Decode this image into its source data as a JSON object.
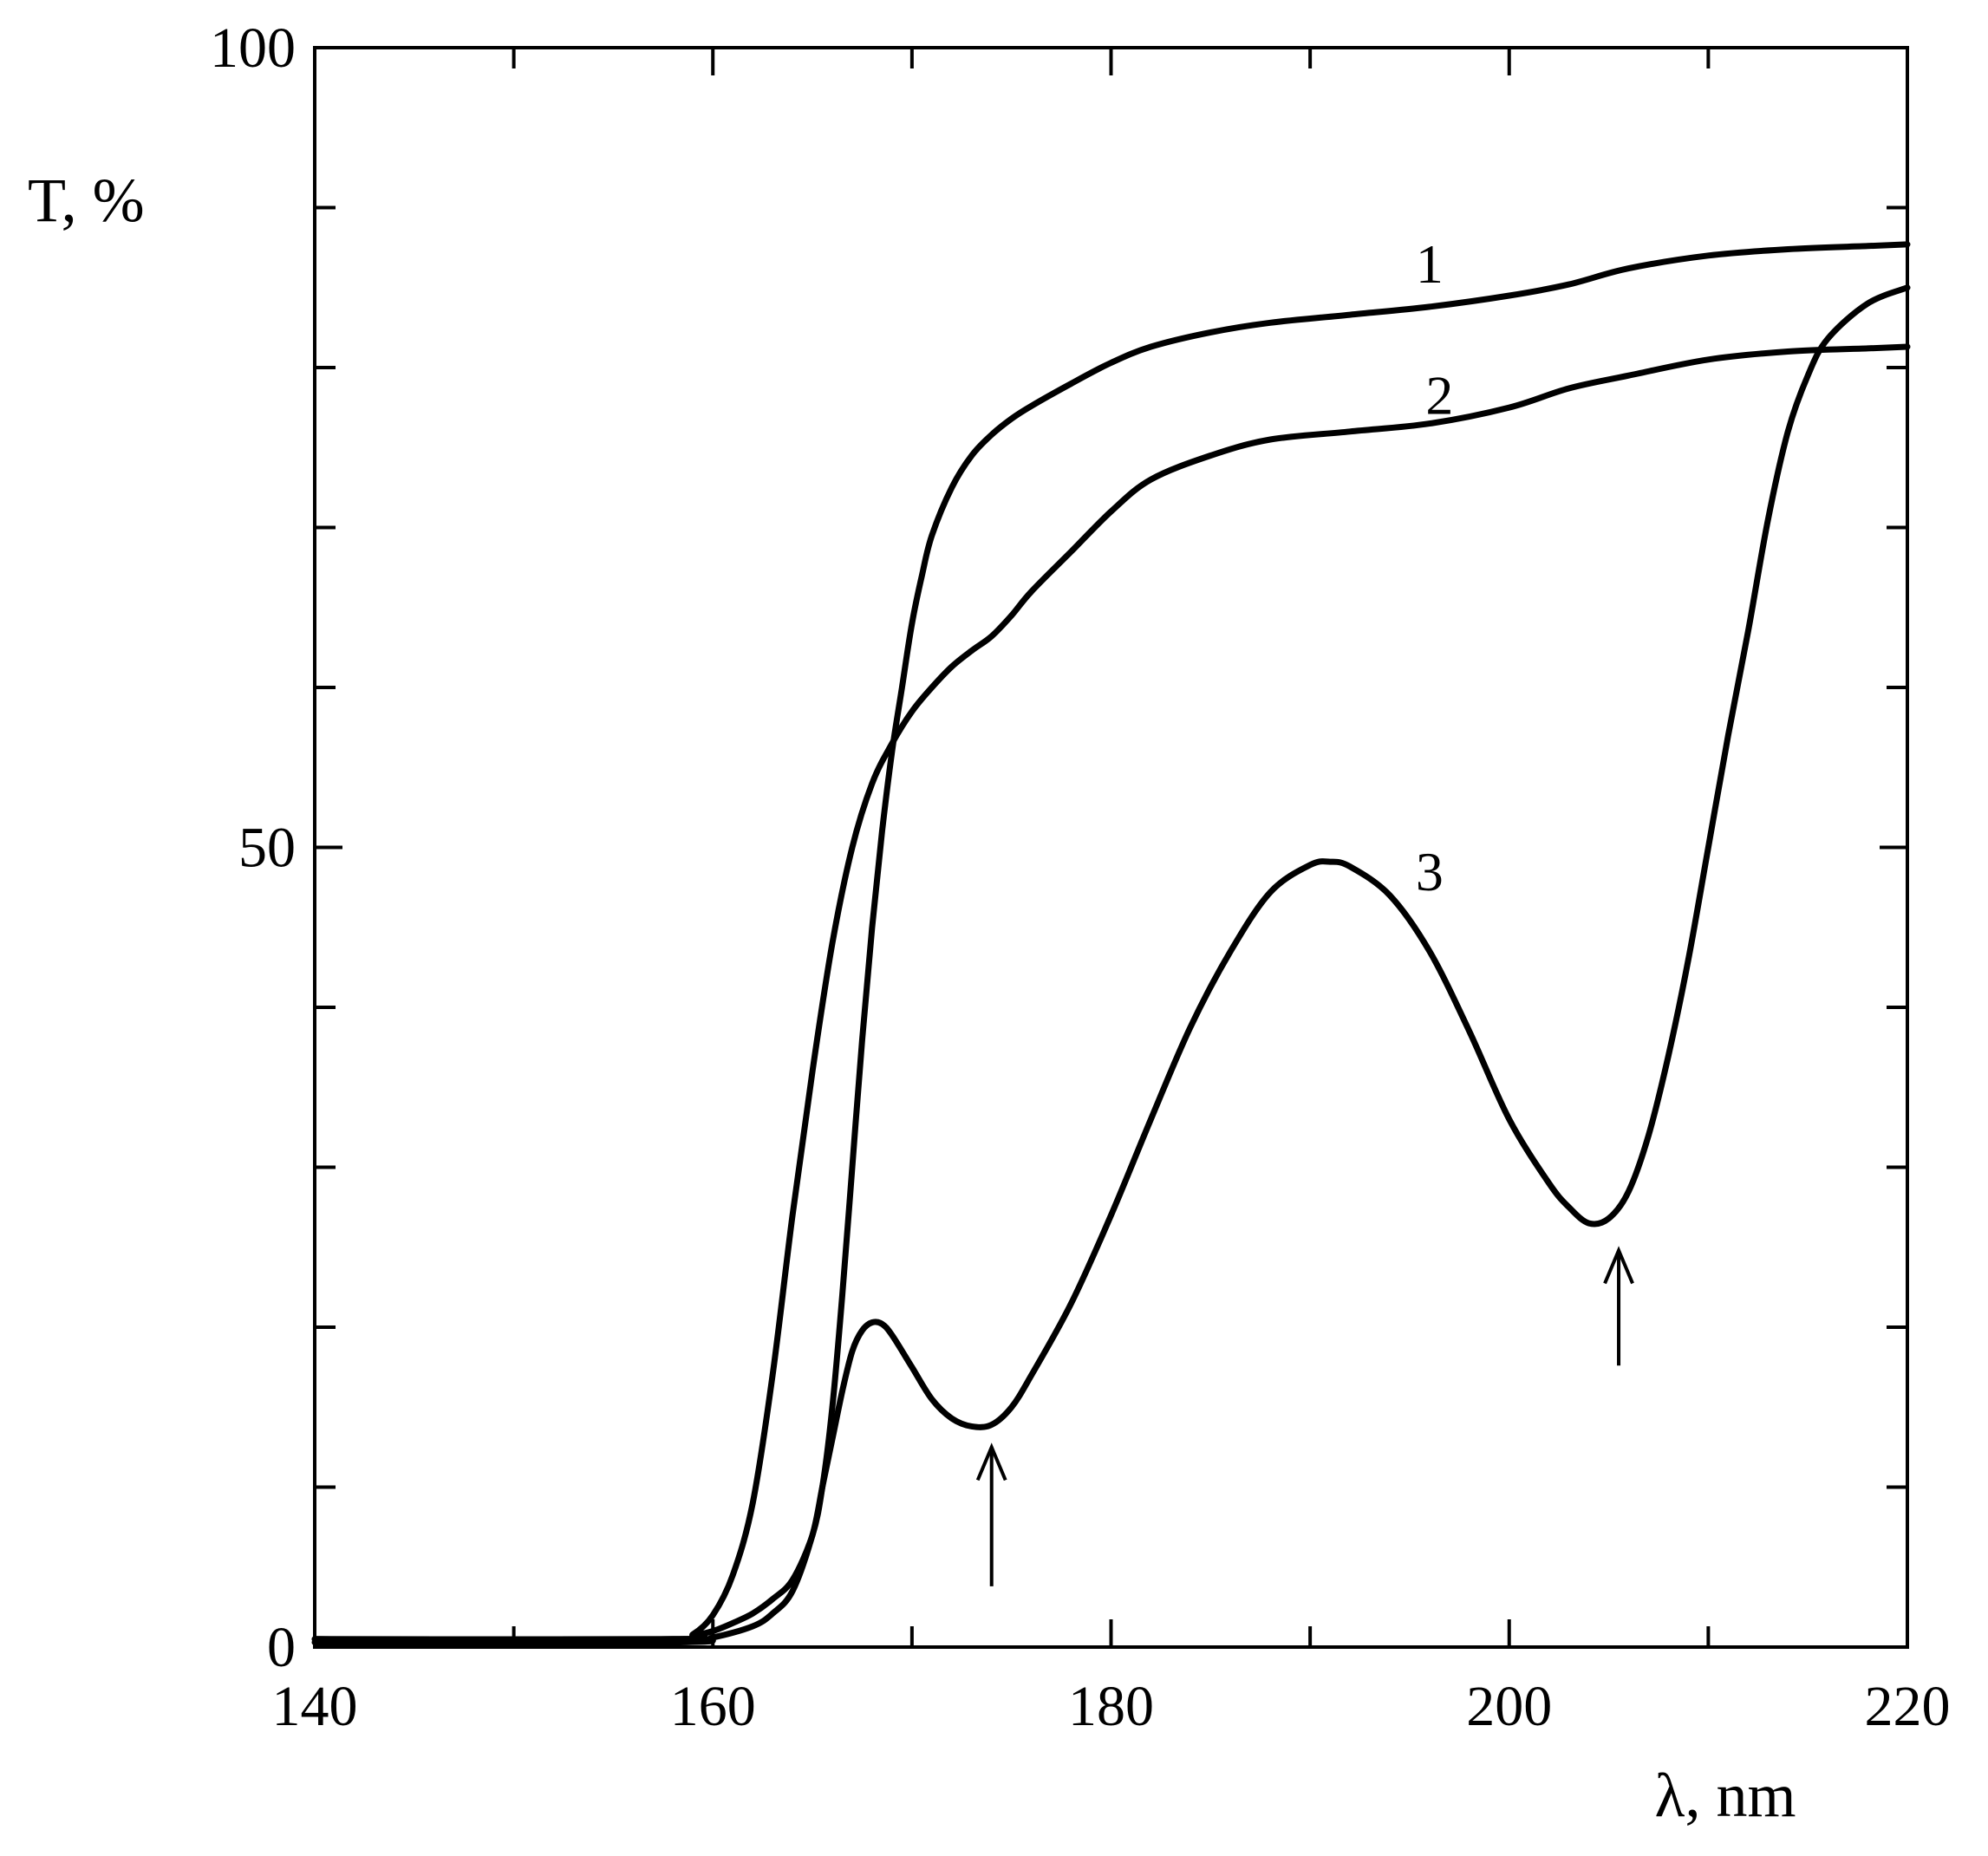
{
  "chart_data": {
    "type": "line",
    "xlabel": "λ, nm",
    "ylabel": "T, %",
    "xlim": [
      140,
      220
    ],
    "ylim": [
      0,
      100
    ],
    "x_ticks": [
      140,
      160,
      180,
      200,
      220
    ],
    "x_tick_labels": [
      "140",
      "160",
      "180",
      "200",
      "220"
    ],
    "x_minor_ticks": [
      150,
      170,
      190,
      210
    ],
    "y_ticks": [
      0,
      50,
      100
    ],
    "y_tick_labels": [
      "0",
      "50",
      "100"
    ],
    "y_minor_ticks": [
      10,
      20,
      30,
      40,
      60,
      70,
      80,
      90
    ],
    "grid": false,
    "series": [
      {
        "name": "1",
        "x": [
          140,
          158,
          159,
          160,
          161,
          162,
          163,
          164,
          165,
          165.5,
          166,
          166.5,
          167,
          167.5,
          168,
          168.5,
          169,
          169.5,
          170,
          170.5,
          171,
          172,
          173,
          174,
          175,
          176,
          178,
          180,
          182,
          185,
          188,
          192,
          196,
          200,
          203,
          206,
          210,
          214,
          218,
          220
        ],
        "y": [
          0.5,
          0.5,
          0.7,
          1,
          1.5,
          2.1,
          3,
          4.2,
          7,
          10,
          15,
          22,
          30,
          38,
          45,
          51,
          56,
          60,
          64,
          67,
          69.5,
          72.5,
          74.5,
          75.8,
          76.8,
          77.6,
          79,
          80.3,
          81.3,
          82.2,
          82.8,
          83.3,
          83.8,
          84.5,
          85.2,
          86.2,
          87,
          87.4,
          87.6,
          87.7
        ]
      },
      {
        "name": "2",
        "x": [
          140,
          158,
          159,
          160,
          161,
          162,
          163,
          164,
          165,
          166,
          167,
          168,
          169,
          170,
          171,
          172,
          173,
          174,
          175,
          176,
          178,
          180,
          182,
          185,
          188,
          192,
          196,
          200,
          203,
          206,
          210,
          214,
          218,
          220
        ],
        "y": [
          0.5,
          0.5,
          0.8,
          2,
          4.5,
          9,
          17,
          27,
          36,
          44,
          50,
          54,
          56.5,
          58.5,
          60,
          61.3,
          62.3,
          63.2,
          64.5,
          66,
          68.5,
          71,
          73,
          74.5,
          75.5,
          76,
          76.5,
          77.5,
          78.7,
          79.5,
          80.5,
          81,
          81.2,
          81.3
        ]
      },
      {
        "name": "3",
        "x": [
          140,
          158,
          160,
          162,
          163,
          164,
          165,
          165.5,
          166,
          166.5,
          167,
          167.5,
          168,
          168.5,
          169,
          170,
          171,
          172,
          173,
          174,
          175,
          176,
          178,
          180,
          182,
          184,
          186,
          188,
          190,
          191,
          192,
          194,
          196,
          198,
          200,
          202,
          203,
          204,
          205,
          206,
          207,
          208,
          209,
          210,
          211,
          212,
          213,
          214,
          215,
          216,
          218,
          220
        ],
        "y": [
          0.3,
          0.3,
          0.6,
          1.3,
          2.1,
          3.5,
          7,
          10,
          13,
          16,
          18.5,
          19.8,
          20.3,
          20.2,
          19.5,
          17.5,
          15.5,
          14.3,
          13.8,
          13.9,
          15,
          17,
          21.5,
          27,
          33,
          38.8,
          43.5,
          47.2,
          48.9,
          49.1,
          48.8,
          47,
          43.5,
          38.5,
          33,
          29,
          27.5,
          26.5,
          26.8,
          28.5,
          32,
          37,
          43,
          50,
          57,
          63.5,
          70.5,
          76,
          79.5,
          81.8,
          84,
          85
        ]
      }
    ],
    "curve_labels": [
      {
        "text": "1",
        "x": 196,
        "y": 86.5
      },
      {
        "text": "2",
        "x": 196.5,
        "y": 78.3
      },
      {
        "text": "3",
        "x": 196,
        "y": 48.5
      }
    ],
    "annotations": [
      {
        "type": "arrow-up",
        "x": 174,
        "tail_y": 3.8,
        "head_y": 12.5
      },
      {
        "type": "arrow-up",
        "x": 205.5,
        "tail_y": 17.6,
        "head_y": 24.8
      }
    ]
  }
}
